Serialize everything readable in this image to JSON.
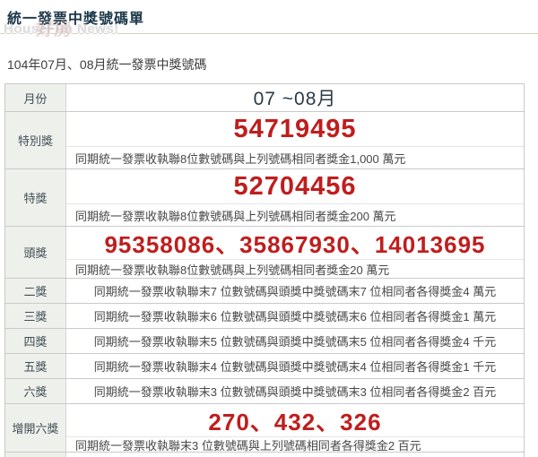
{
  "page": {
    "title": "統一發票中獎號碼單",
    "subtitle": "104年07月、08月統一發票中獎號碼",
    "watermark": {
      "logo_text": "好房",
      "name_text": "HouseFun News!"
    }
  },
  "colors": {
    "title_navy": "#1c3849",
    "number_red": "#c01d1d",
    "label_bg": "#eef0ec",
    "border_gray": "#c9c9c9"
  },
  "table": {
    "rows": [
      {
        "type": "month",
        "label": "月份",
        "value": "07 ~08月"
      },
      {
        "type": "group",
        "label": "特別獎",
        "numbers": "54719495",
        "num_size": "lg",
        "desc": "同期統一發票收執聯8位數號碼與上列號碼相同者獎金1,000 萬元"
      },
      {
        "type": "group",
        "label": "特獎",
        "numbers": "52704456",
        "num_size": "lg",
        "desc": "同期統一發票收執聯8位數號碼與上列號碼相同者獎金200 萬元"
      },
      {
        "type": "group",
        "label": "頭獎",
        "numbers": "95358086、35867930、14013695",
        "num_size": "md",
        "desc": "同期統一發票收執聯8位數號碼與上列號碼相同者獎金20 萬元"
      },
      {
        "type": "simple",
        "label": "二獎",
        "desc": "同期統一發票收執聯末7 位數號碼與頭獎中獎號碼末7 位相同者各得獎金4 萬元"
      },
      {
        "type": "simple",
        "label": "三獎",
        "desc": "同期統一發票收執聯末6 位數號碼與頭獎中獎號碼末6 位相同者各得獎金1 萬元"
      },
      {
        "type": "simple",
        "label": "四獎",
        "desc": "同期統一發票收執聯末5 位數號碼與頭獎中獎號碼末5 位相同者各得獎金4 千元"
      },
      {
        "type": "simple",
        "label": "五獎",
        "desc": "同期統一發票收執聯末4 位數號碼與頭獎中獎號碼末4 位相同者各得獎金1 千元"
      },
      {
        "type": "simple",
        "label": "六獎",
        "desc": "同期統一發票收執聯末3 位數號碼與頭獎中獎號碼末3 位相同者各得獎金2 百元"
      },
      {
        "type": "group",
        "label": "增開六獎",
        "numbers": "270、432、326",
        "num_size": "md",
        "compact": true,
        "desc": "同期統一發票收執聯末3 位數號碼與上列號碼相同者各得獎金2 百元"
      },
      {
        "type": "partial",
        "label": ""
      }
    ]
  }
}
